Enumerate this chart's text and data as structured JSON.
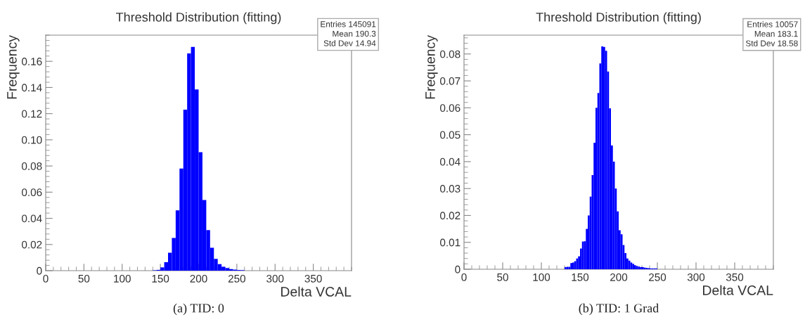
{
  "chart_data": [
    {
      "type": "histogram",
      "title": "Threshold Distribution (fitting)",
      "xlabel": "Delta VCAL",
      "ylabel": "Frequency",
      "color": "#0000ff",
      "grid": false,
      "bins": [
        140,
        145,
        150,
        155,
        160,
        165,
        170,
        175,
        180,
        185,
        190,
        195,
        200,
        205,
        210,
        215,
        220,
        225,
        230,
        235,
        240,
        245,
        250,
        255,
        260
      ],
      "values": [
        0.0003,
        0.0006,
        0.0025,
        0.0065,
        0.0137,
        0.025,
        0.0461,
        0.078,
        0.123,
        0.166,
        0.171,
        0.1385,
        0.0905,
        0.054,
        0.031,
        0.0175,
        0.009,
        0.005,
        0.003,
        0.002,
        0.0012,
        0.0008,
        0.0005,
        0.0004
      ],
      "xlim": [
        0,
        400
      ],
      "xticks": [
        0,
        50,
        100,
        150,
        200,
        250,
        300,
        350
      ],
      "ylim": [
        0,
        0.18
      ],
      "yticks": [
        {
          "value": 0,
          "label": "0"
        },
        {
          "value": 0.02,
          "label": "0.02"
        },
        {
          "value": 0.04,
          "label": "0.04"
        },
        {
          "value": 0.06,
          "label": "0.06"
        },
        {
          "value": 0.08,
          "label": "0.08"
        },
        {
          "value": 0.1,
          "label": "0.10"
        },
        {
          "value": 0.12,
          "label": "0.12"
        },
        {
          "value": 0.14,
          "label": "0.14"
        },
        {
          "value": 0.16,
          "label": "0.16"
        }
      ],
      "annotations": [
        "Entries 145091",
        "Mean 190.3",
        "Std Dev 14.94",
        "(a) TID: 0"
      ]
    },
    {
      "type": "histogram",
      "title": "Threshold Distribution (fitting)",
      "xlabel": "Delta VCAL",
      "ylabel": "Frequency",
      "color": "#0000ff",
      "grid": false,
      "bins": [
        130,
        132.5,
        135,
        137.5,
        140,
        142.5,
        145,
        147.5,
        150,
        152.5,
        155,
        157.5,
        160,
        162.5,
        165,
        167.5,
        170,
        172.5,
        175,
        177.5,
        180,
        182.5,
        185,
        187.5,
        190,
        192.5,
        195,
        197.5,
        200,
        202.5,
        205,
        207.5,
        210,
        212.5,
        215,
        217.5,
        220,
        222.5,
        225,
        227.5,
        230,
        232.5,
        235,
        237.5,
        240,
        242.5,
        245,
        247.5,
        250
      ],
      "values": [
        0.0008,
        0.0009,
        0.0009,
        0.0023,
        0.0025,
        0.003,
        0.004,
        0.0048,
        0.0077,
        0.0103,
        0.0104,
        0.015,
        0.02,
        0.027,
        0.035,
        0.047,
        0.06,
        0.0655,
        0.0765,
        0.0828,
        0.0826,
        0.0812,
        0.0735,
        0.0598,
        0.046,
        0.04,
        0.03,
        0.0215,
        0.0145,
        0.013,
        0.009,
        0.006,
        0.004,
        0.0032,
        0.0025,
        0.002,
        0.0015,
        0.0012,
        0.001,
        0.0008,
        0.0008,
        0.0006,
        0.0005,
        0.0004,
        0.0003,
        0.0003,
        0.0003,
        0.0003
      ],
      "xlim": [
        0,
        400
      ],
      "xticks": [
        0,
        50,
        100,
        150,
        200,
        250,
        300,
        350
      ],
      "ylim": [
        0,
        0.087
      ],
      "yticks": [
        {
          "value": 0,
          "label": "0"
        },
        {
          "value": 0.01,
          "label": "0.01"
        },
        {
          "value": 0.02,
          "label": "0.02"
        },
        {
          "value": 0.03,
          "label": "0.03"
        },
        {
          "value": 0.04,
          "label": "0.04"
        },
        {
          "value": 0.05,
          "label": "0.05"
        },
        {
          "value": 0.06,
          "label": "0.06"
        },
        {
          "value": 0.07,
          "label": "0.07"
        },
        {
          "value": 0.08,
          "label": "0.08"
        }
      ],
      "annotations": [
        "Entries 10057",
        "Mean 183.1",
        "Std Dev 18.58",
        "(b) TID: 1 Grad"
      ]
    }
  ]
}
